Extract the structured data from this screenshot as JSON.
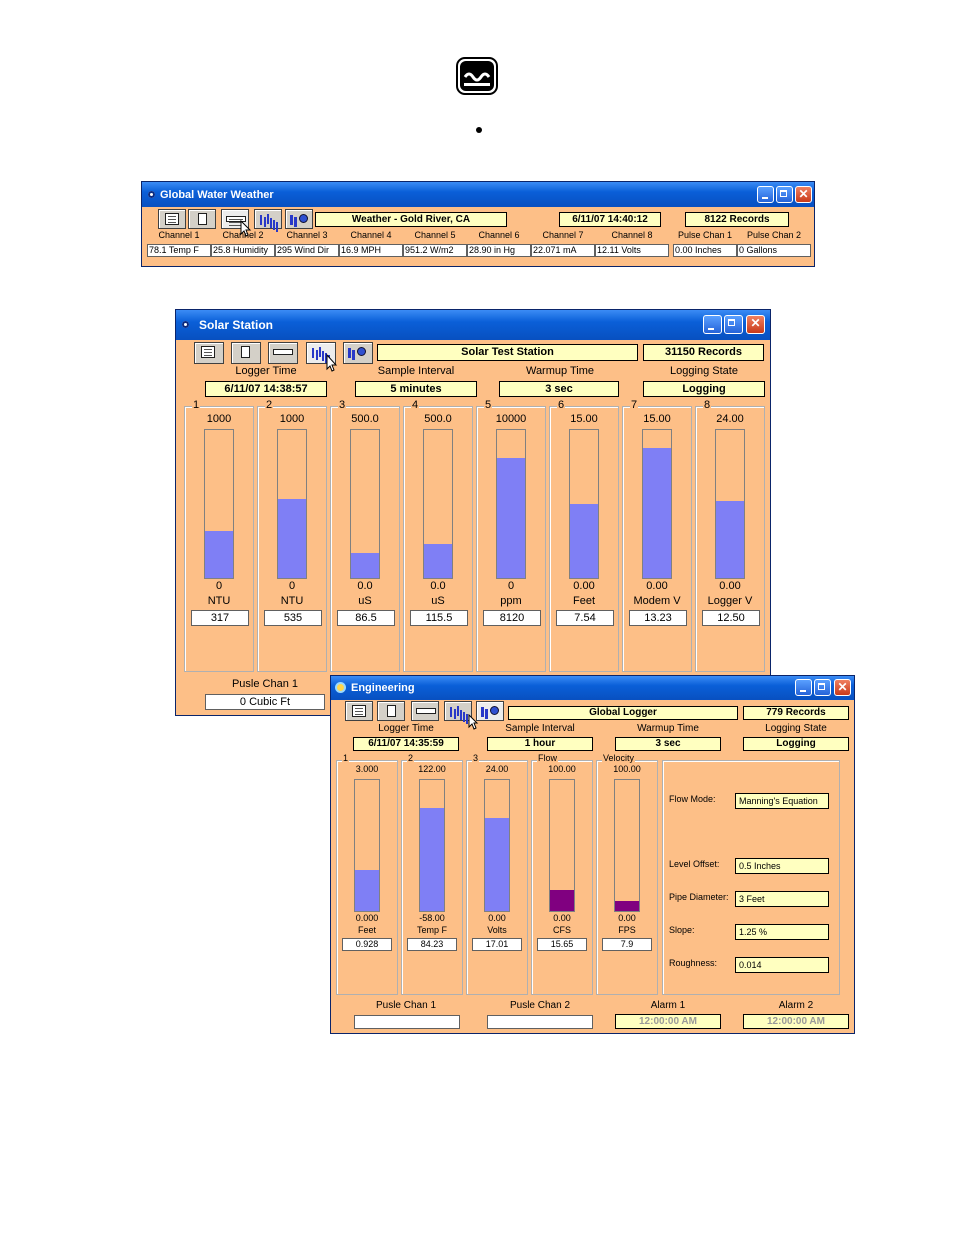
{
  "gww": {
    "title": "Global Water Weather",
    "station": "Weather - Gold River, CA",
    "datetime": "6/11/07 14:40:12",
    "records": "8122 Records",
    "headers": [
      "Channel 1",
      "Channel 2",
      "Channel 3",
      "Channel 4",
      "Channel 5",
      "Channel 6",
      "Channel 7",
      "Channel 8",
      "Pulse Chan 1",
      "Pulse Chan 2"
    ],
    "values": [
      "78.1 Temp F",
      "25.8 Humidity",
      "295 Wind Dir",
      "16.9 MPH",
      "951.2 W/m2",
      "28.90 in Hg",
      "22.071 mA",
      "12.11 Volts",
      "0.00 Inches",
      "0 Gallons"
    ]
  },
  "solar": {
    "title": "Solar Station",
    "station": "Solar Test Station",
    "records": "31150 Records",
    "labels": {
      "logger_time": "Logger Time",
      "sample_interval": "Sample Interval",
      "warmup_time": "Warmup Time",
      "logging_state": "Logging State"
    },
    "logger_time": "6/11/07 14:38:57",
    "sample_interval": "5 minutes",
    "warmup_time": "3 sec",
    "logging_state": "Logging",
    "channels": [
      {
        "num": "1",
        "max": "1000",
        "min": "0",
        "unit": "NTU",
        "value": "317",
        "fill": 0.32
      },
      {
        "num": "2",
        "max": "1000",
        "min": "0",
        "unit": "NTU",
        "value": "535",
        "fill": 0.535
      },
      {
        "num": "3",
        "max": "500.0",
        "min": "0.0",
        "unit": "uS",
        "value": "86.5",
        "fill": 0.17
      },
      {
        "num": "4",
        "max": "500.0",
        "min": "0.0",
        "unit": "uS",
        "value": "115.5",
        "fill": 0.23
      },
      {
        "num": "5",
        "max": "10000",
        "min": "0",
        "unit": "ppm",
        "value": "8120",
        "fill": 0.81
      },
      {
        "num": "6",
        "max": "15.00",
        "min": "0.00",
        "unit": "Feet",
        "value": "7.54",
        "fill": 0.5
      },
      {
        "num": "7",
        "max": "15.00",
        "min": "0.00",
        "unit": "Modem V",
        "value": "13.23",
        "fill": 0.88
      },
      {
        "num": "8",
        "max": "24.00",
        "min": "0.00",
        "unit": "Logger V",
        "value": "12.50",
        "fill": 0.52
      }
    ],
    "pulse_label": "Pusle Chan 1",
    "pulse_value": "0 Cubic Ft"
  },
  "eng": {
    "title": "Engineering",
    "station": "Global Logger",
    "records": "779 Records",
    "labels": {
      "logger_time": "Logger Time",
      "sample_interval": "Sample Interval",
      "warmup_time": "Warmup Time",
      "logging_state": "Logging State"
    },
    "logger_time": "6/11/07 14:35:59",
    "sample_interval": "1 hour",
    "warmup_time": "3 sec",
    "logging_state": "Logging",
    "channels": [
      {
        "num": "1",
        "max": "3.000",
        "min": "0.000",
        "unit": "Feet",
        "value": "0.928",
        "fill": 0.31
      },
      {
        "num": "2",
        "max": "122.00",
        "min": "-58.00",
        "unit": "Temp F",
        "value": "84.23",
        "fill": 0.79
      },
      {
        "num": "3",
        "max": "24.00",
        "min": "0.00",
        "unit": "Volts",
        "value": "17.01",
        "fill": 0.71
      },
      {
        "num": "Flow",
        "max": "100.00",
        "min": "0.00",
        "unit": "CFS",
        "value": "15.65",
        "fill": 0.16
      },
      {
        "num": "Velocity",
        "max": "100.00",
        "min": "0.00",
        "unit": "FPS",
        "value": "7.9",
        "fill": 0.08
      }
    ],
    "flow": {
      "mode_label": "Flow Mode:",
      "mode": "Manning's Equation",
      "level_label": "Level Offset:",
      "level": "0.5 Inches",
      "pipe_label": "Pipe Diameter:",
      "pipe": "3 Feet",
      "slope_label": "Slope:",
      "slope": "1.25 %",
      "rough_label": "Roughness:",
      "rough": "0.014"
    },
    "pulse1_label": "Pusle Chan 1",
    "pulse1": "",
    "pulse2_label": "Pusle Chan 2",
    "pulse2": "",
    "alarm1_label": "Alarm 1",
    "alarm1": "12:00:00 AM",
    "alarm2_label": "Alarm 2",
    "alarm2": "12:00:00 AM"
  },
  "colors": {
    "window_bg": "#fdbf87",
    "bar": "#7f7ff5",
    "bar_alt": "#800080"
  }
}
